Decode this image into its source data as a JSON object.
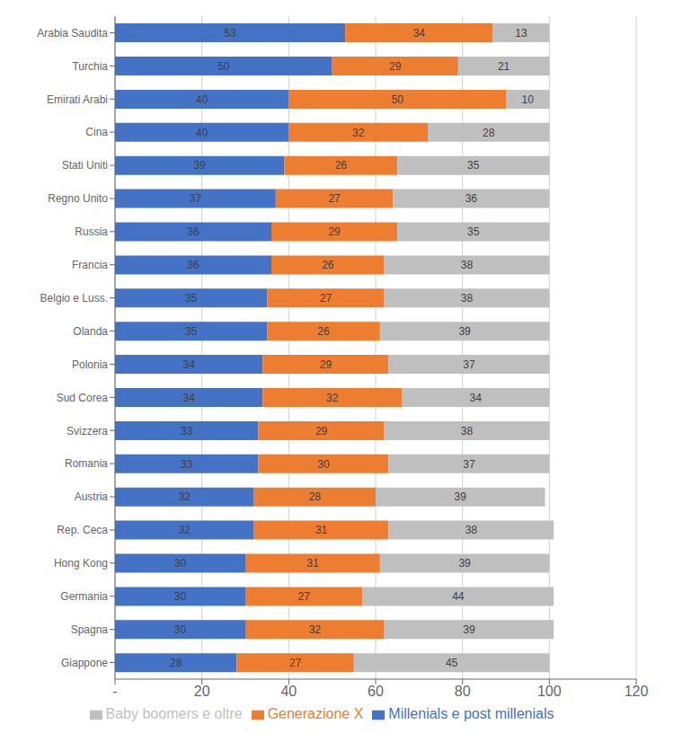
{
  "chart_data": {
    "type": "bar",
    "orientation": "horizontal",
    "stacked": true,
    "data_labels": true,
    "grid": true,
    "legend": "bottom",
    "categories": [
      "Arabia Saudita",
      "Turchia",
      "Emirati Arabi",
      "Cina",
      "Stati Uniti",
      "Regno Unito",
      "Russia",
      "Francia",
      "Belgio e Luss.",
      "Olanda",
      "Polonia",
      "Sud Corea",
      "Svizzera",
      "Romania",
      "Austria",
      "Rep. Ceca",
      "Hong Kong",
      "Germania",
      "Spagna",
      "Giappone"
    ],
    "series": [
      {
        "name": "Millenials e post millenials",
        "color": "#4472C4",
        "values": [
          53,
          50,
          40,
          40,
          39,
          37,
          36,
          36,
          35,
          35,
          34,
          34,
          33,
          33,
          32,
          32,
          30,
          30,
          30,
          28
        ]
      },
      {
        "name": "Generazione X",
        "color": "#ED7D31",
        "values": [
          34,
          29,
          50,
          32,
          26,
          27,
          29,
          26,
          27,
          26,
          29,
          32,
          29,
          30,
          28,
          31,
          31,
          27,
          32,
          27
        ]
      },
      {
        "name": "Baby boomers e oltre",
        "color": "#BFBFBF",
        "values": [
          13,
          21,
          10,
          28,
          35,
          36,
          35,
          38,
          38,
          39,
          37,
          34,
          38,
          37,
          39,
          38,
          39,
          44,
          39,
          45
        ]
      }
    ],
    "xlim": [
      0,
      120
    ],
    "xticks": [
      {
        "value": 0,
        "label": "-"
      },
      20,
      40,
      60,
      80,
      100,
      120
    ]
  }
}
